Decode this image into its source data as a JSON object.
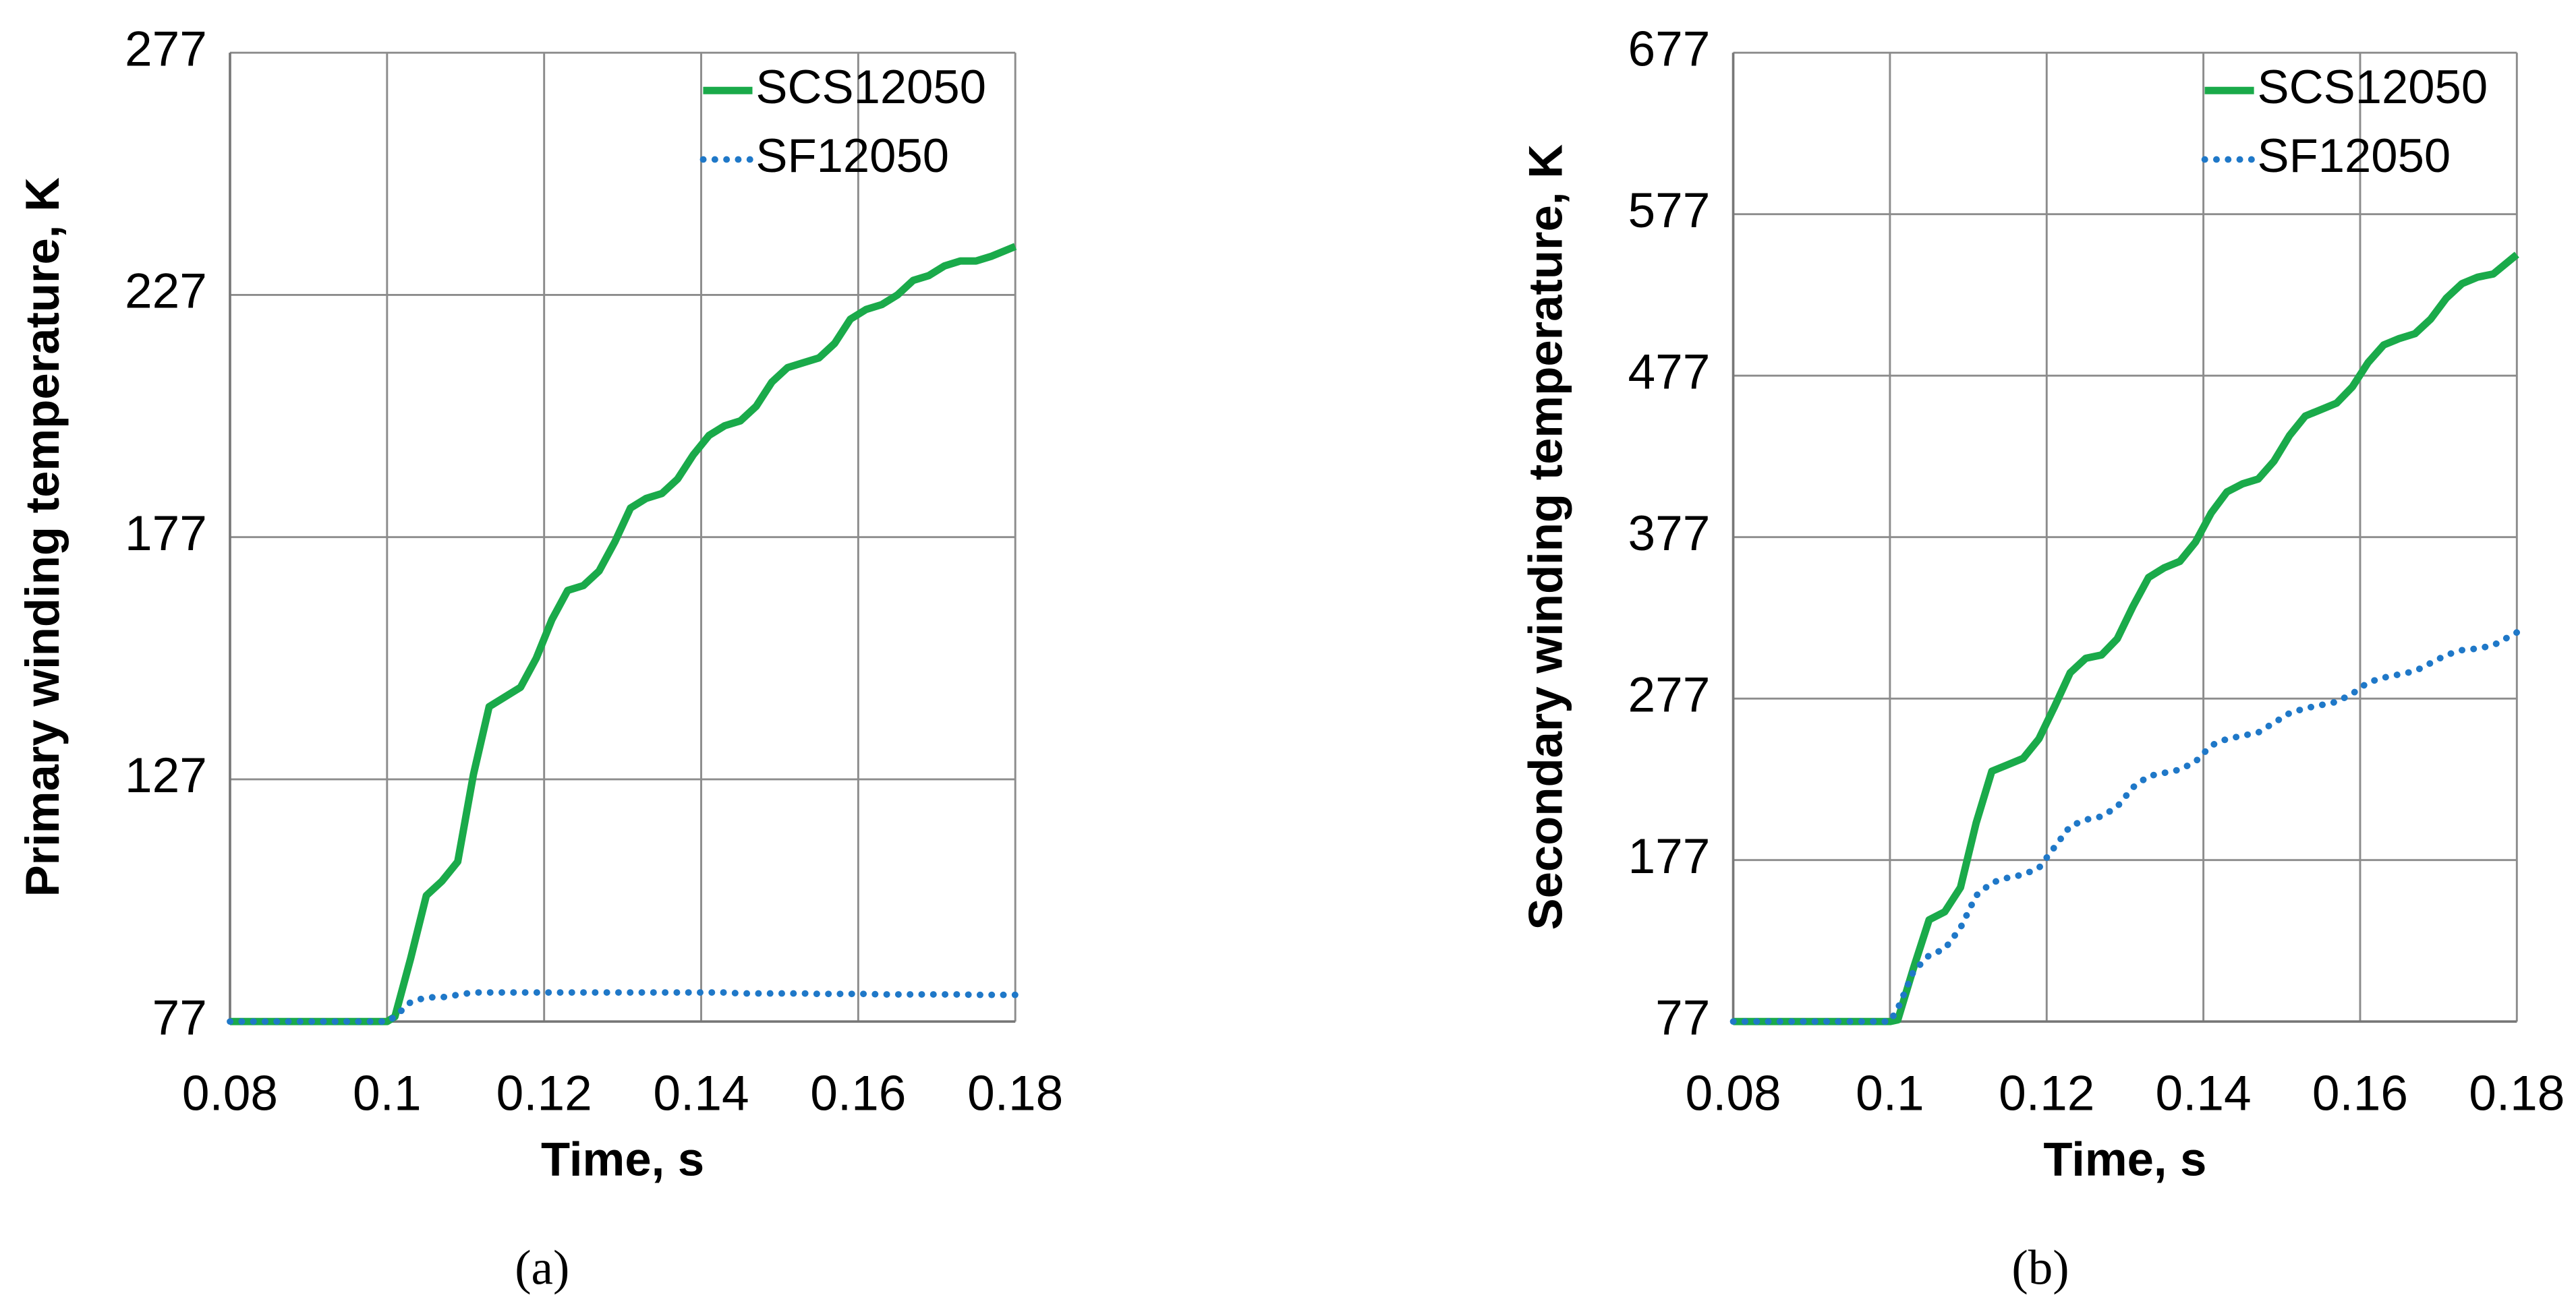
{
  "chart_data": [
    {
      "type": "line",
      "caption": "(a)",
      "xlabel": "Time, s",
      "ylabel": "Primary winding temperature, K",
      "x": [
        0.08,
        0.1,
        0.101,
        0.103,
        0.105,
        0.107,
        0.109,
        0.111,
        0.113,
        0.115,
        0.117,
        0.119,
        0.121,
        0.123,
        0.125,
        0.127,
        0.129,
        0.131,
        0.133,
        0.135,
        0.137,
        0.139,
        0.141,
        0.143,
        0.145,
        0.147,
        0.149,
        0.151,
        0.153,
        0.155,
        0.157,
        0.159,
        0.161,
        0.163,
        0.165,
        0.167,
        0.169,
        0.171,
        0.173,
        0.175,
        0.177,
        0.18
      ],
      "series": [
        {
          "name": "SCS12050",
          "color": "#1aaa4a",
          "dash": false,
          "values": [
            77,
            77,
            78,
            90,
            103,
            106,
            110,
            128,
            142,
            144,
            146,
            152,
            160,
            166,
            167,
            170,
            176,
            183,
            185,
            186,
            189,
            194,
            198,
            200,
            201,
            204,
            209,
            212,
            213,
            214,
            217,
            222,
            224,
            225,
            227,
            230,
            231,
            233,
            234,
            234,
            235,
            237
          ]
        },
        {
          "name": "SF12050",
          "color": "#1f78c8",
          "dash": true,
          "values": [
            77,
            77,
            78,
            81,
            82,
            82,
            82.5,
            83,
            83,
            83,
            83,
            83,
            83,
            83,
            83,
            83,
            83,
            83,
            83,
            83,
            83,
            83,
            83,
            83,
            82.8,
            82.8,
            82.8,
            82.8,
            82.8,
            82.7,
            82.7,
            82.7,
            82.7,
            82.6,
            82.6,
            82.6,
            82.6,
            82.6,
            82.6,
            82.5,
            82.5,
            82.5
          ]
        }
      ],
      "xlim": [
        0.08,
        0.18
      ],
      "xticks": [
        0.08,
        0.1,
        0.12,
        0.14,
        0.16,
        0.18
      ],
      "ylim": [
        77,
        277
      ],
      "yticks": [
        77,
        127,
        177,
        227,
        277
      ],
      "grid": true,
      "legend": "upper right"
    },
    {
      "type": "line",
      "caption": "(b)",
      "xlabel": "Time, s",
      "ylabel": "Secondary winding temperature, K",
      "x": [
        0.08,
        0.1,
        0.101,
        0.103,
        0.105,
        0.107,
        0.109,
        0.111,
        0.113,
        0.115,
        0.117,
        0.119,
        0.121,
        0.123,
        0.125,
        0.127,
        0.129,
        0.131,
        0.133,
        0.135,
        0.137,
        0.139,
        0.141,
        0.143,
        0.145,
        0.147,
        0.149,
        0.151,
        0.153,
        0.155,
        0.157,
        0.159,
        0.161,
        0.163,
        0.165,
        0.167,
        0.169,
        0.171,
        0.173,
        0.175,
        0.177,
        0.18
      ],
      "series": [
        {
          "name": "SCS12050",
          "color": "#1aaa4a",
          "dash": false,
          "values": [
            77,
            77,
            78,
            110,
            140,
            145,
            160,
            200,
            232,
            236,
            240,
            252,
            272,
            293,
            302,
            304,
            314,
            334,
            352,
            358,
            362,
            374,
            392,
            405,
            410,
            413,
            424,
            440,
            452,
            456,
            460,
            470,
            485,
            496,
            500,
            503,
            512,
            525,
            534,
            538,
            540,
            552
          ]
        },
        {
          "name": "SF12050",
          "color": "#1f78c8",
          "dash": true,
          "values": [
            77,
            77,
            85,
            108,
            118,
            122,
            135,
            155,
            163,
            166,
            168,
            172,
            185,
            198,
            202,
            204,
            210,
            222,
            229,
            231,
            233,
            238,
            248,
            252,
            254,
            256,
            262,
            268,
            271,
            273,
            275,
            280,
            287,
            290,
            292,
            294,
            299,
            304,
            307,
            308,
            310,
            318
          ]
        }
      ],
      "xlim": [
        0.08,
        0.18
      ],
      "xticks": [
        0.08,
        0.1,
        0.12,
        0.14,
        0.16,
        0.18
      ],
      "ylim": [
        77,
        677
      ],
      "yticks": [
        77,
        177,
        277,
        377,
        477,
        577,
        677
      ],
      "grid": true,
      "legend": "upper right"
    }
  ]
}
